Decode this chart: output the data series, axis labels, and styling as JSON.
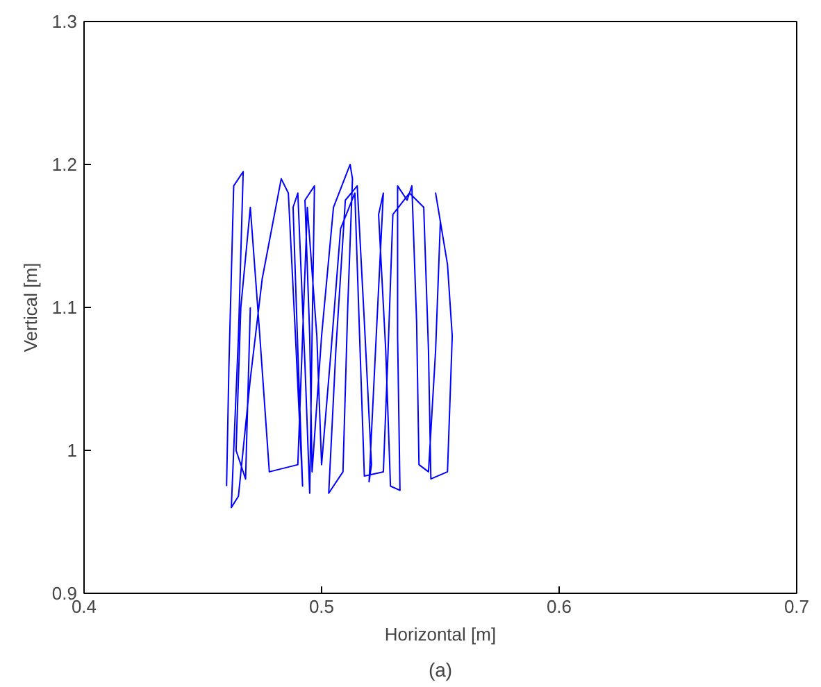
{
  "chart_data": {
    "type": "line",
    "xlabel": "Horizontal [m]",
    "ylabel": "Vertical [m]",
    "annotations": [
      "(a)"
    ],
    "xlim": [
      0.4,
      0.7
    ],
    "ylim": [
      0.9,
      1.3
    ],
    "xticks": [
      0.4,
      0.5,
      0.6,
      0.7
    ],
    "yticks": [
      0.9,
      1,
      1.1,
      1.2,
      1.3
    ],
    "grid": false,
    "marker": "none",
    "line_style": "solid",
    "series": [
      {
        "color": "#0000ff",
        "x": [
          0.46,
          0.461,
          0.463,
          0.467,
          0.465,
          0.462,
          0.465,
          0.47,
          0.475,
          0.483,
          0.486,
          0.489,
          0.492,
          0.49,
          0.488,
          0.49,
          0.493,
          0.495,
          0.496,
          0.497,
          0.493,
          0.495,
          0.496,
          0.5,
          0.505,
          0.512,
          0.513,
          0.511,
          0.509,
          0.503,
          0.506,
          0.51,
          0.515,
          0.518,
          0.521,
          0.52,
          0.523,
          0.526,
          0.524,
          0.527,
          0.529,
          0.533,
          0.532,
          0.532,
          0.536,
          0.538,
          0.54,
          0.541,
          0.545,
          0.548,
          0.55,
          0.548,
          0.553,
          0.555,
          0.553,
          0.546,
          0.545,
          0.543,
          0.537,
          0.53,
          0.528,
          0.526,
          0.518,
          0.516,
          0.514,
          0.508,
          0.504,
          0.5,
          0.498,
          0.494,
          0.49,
          0.478,
          0.474,
          0.47,
          0.466,
          0.464,
          0.468,
          0.47
        ],
        "values": [
          0.975,
          1.06,
          1.185,
          1.195,
          1.08,
          0.96,
          0.968,
          1.05,
          1.12,
          1.19,
          1.18,
          1.08,
          0.975,
          1.07,
          1.17,
          1.18,
          1.06,
          0.97,
          1.08,
          1.185,
          1.175,
          1.08,
          0.985,
          1.08,
          1.17,
          1.2,
          1.19,
          1.1,
          0.985,
          0.97,
          1.07,
          1.175,
          1.185,
          1.09,
          0.99,
          0.978,
          1.08,
          1.18,
          1.165,
          1.07,
          0.975,
          0.972,
          1.08,
          1.185,
          1.175,
          1.185,
          1.09,
          0.99,
          0.985,
          1.07,
          1.16,
          1.18,
          1.13,
          1.08,
          0.985,
          0.98,
          1.07,
          1.17,
          1.18,
          1.165,
          1.07,
          0.985,
          0.982,
          1.08,
          1.18,
          1.155,
          1.07,
          0.99,
          1.08,
          1.17,
          0.99,
          0.985,
          1.08,
          1.17,
          1.1,
          1.0,
          0.98,
          1.1
        ]
      }
    ]
  }
}
